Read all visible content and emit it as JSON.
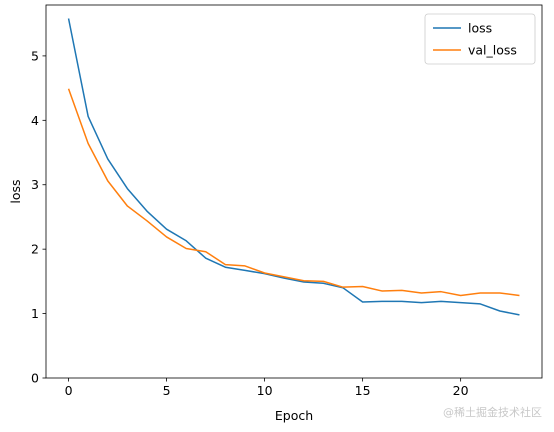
{
  "chart_data": {
    "type": "line",
    "title": "",
    "xlabel": "Epoch",
    "ylabel": "loss",
    "x": [
      0,
      1,
      2,
      3,
      4,
      5,
      6,
      7,
      8,
      9,
      10,
      11,
      12,
      13,
      14,
      15,
      16,
      17,
      18,
      19,
      20,
      21,
      22,
      23
    ],
    "xlim": [
      -1.15,
      24.15
    ],
    "ylim": [
      0,
      5.79
    ],
    "xticks": [
      0,
      5,
      10,
      15,
      20
    ],
    "yticks": [
      0,
      1,
      2,
      3,
      4,
      5
    ],
    "grid": false,
    "legend": "top-right",
    "series": [
      {
        "name": "loss",
        "color": "#1f77b4",
        "values": [
          5.58,
          4.06,
          3.4,
          2.94,
          2.59,
          2.31,
          2.13,
          1.86,
          1.72,
          1.67,
          1.62,
          1.55,
          1.49,
          1.47,
          1.4,
          1.18,
          1.19,
          1.19,
          1.17,
          1.19,
          1.17,
          1.15,
          1.04,
          0.98
        ]
      },
      {
        "name": "val_loss",
        "color": "#ff7f0e",
        "values": [
          4.49,
          3.64,
          3.06,
          2.67,
          2.44,
          2.19,
          2.01,
          1.96,
          1.76,
          1.74,
          1.63,
          1.57,
          1.51,
          1.5,
          1.41,
          1.42,
          1.35,
          1.36,
          1.32,
          1.34,
          1.28,
          1.32,
          1.32,
          1.28
        ]
      }
    ]
  },
  "watermark": "@稀土掘金技术社区"
}
